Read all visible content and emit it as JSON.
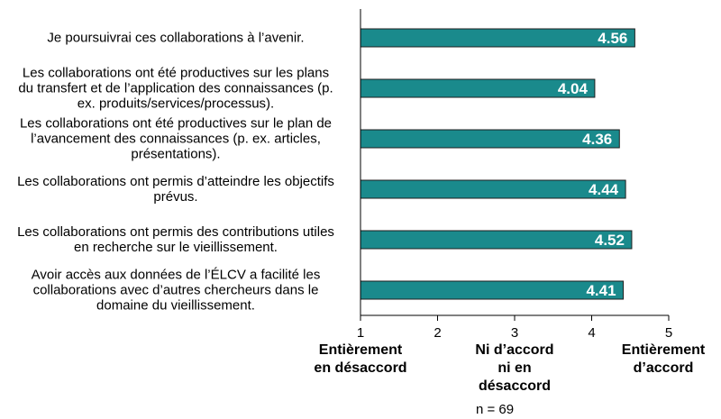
{
  "chart_data": {
    "type": "bar",
    "orientation": "horizontal",
    "categories": [
      "Je poursuivrai ces collaborations à l’avenir.",
      "Les collaborations ont été productives sur les plans du transfert et de l’application des connaissances (p. ex. produits/services/processus).",
      "Les collaborations ont été productives sur le plan de l’avancement des connaissances (p. ex. articles, présentations).",
      "Les collaborations ont permis d’atteindre les objectifs prévus.",
      "Les collaborations ont permis des contributions utiles en recherche sur le vieillissement.",
      "Avoir accès aux données de l’ÉLCV a facilité les collaborations avec d’autres chercheurs dans le domaine du vieillissement."
    ],
    "category_lines": [
      [
        "Je poursuivrai ces collaborations à l’avenir."
      ],
      [
        "Les collaborations ont été productives sur les plans",
        "du transfert et de l’application des connaissances (p.",
        "ex. produits/services/processus)."
      ],
      [
        "Les collaborations ont été productives sur le plan de",
        "l’avancement des connaissances (p. ex. articles,",
        "présentations)."
      ],
      [
        "Les collaborations ont permis d’atteindre les objectifs",
        "prévus."
      ],
      [
        "Les collaborations ont permis des contributions utiles",
        "en recherche sur le vieillissement."
      ],
      [
        "Avoir accès aux données de l’ÉLCV a facilité les",
        "collaborations avec d’autres chercheurs dans le",
        "domaine du vieillissement."
      ]
    ],
    "values": [
      4.56,
      4.04,
      4.36,
      4.44,
      4.52,
      4.41
    ],
    "value_labels": [
      "4.56",
      "4.04",
      "4.36",
      "4.44",
      "4.52",
      "4.41"
    ],
    "xlim": [
      1,
      5
    ],
    "xticks": [
      "1",
      "2",
      "3",
      "4",
      "5"
    ],
    "bar_color": "#1a8a8c",
    "label_color": "#ffffff",
    "grid": false,
    "scale_anchors": [
      {
        "lines": [
          "Entièrement",
          "en désaccord"
        ]
      },
      {
        "lines": [
          "Ni d’accord",
          "ni en",
          "désaccord"
        ]
      },
      {
        "lines": [
          "Entièrement",
          "d’accord"
        ]
      }
    ],
    "note": "n = 69"
  }
}
